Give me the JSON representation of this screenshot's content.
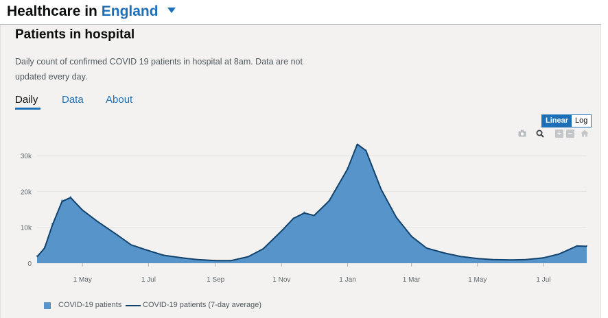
{
  "header": {
    "prefix": "Healthcare in",
    "area": "England"
  },
  "card": {
    "title": "Patients in hospital",
    "description": "Daily count of confirmed COVID 19 patients in hospital at 8am. Data are not updated every day.",
    "tabs": [
      {
        "label": "Daily",
        "active": true
      },
      {
        "label": "Data",
        "active": false
      },
      {
        "label": "About",
        "active": false
      }
    ]
  },
  "scale_toggle": {
    "options": [
      "Linear",
      "Log"
    ],
    "selected": "Linear"
  },
  "modebar": {
    "icons": [
      "camera-icon",
      "zoom-icon",
      "zoom-in-icon",
      "zoom-out-icon",
      "reset-axes-icon"
    ]
  },
  "colors": {
    "accent": "#1d70b8",
    "area_fill": "#5694ca",
    "line": "#12436d",
    "card_bg": "#f3f2f1"
  },
  "chart_data": {
    "type": "area",
    "title": "",
    "xlabel": "",
    "ylabel": "",
    "x_tick_labels": [
      "1 May",
      "1 Jul",
      "1 Sep",
      "1 Nov",
      "1 Jan",
      "1 Mar",
      "1 May",
      "1 Jul"
    ],
    "y_tick_labels": [
      "0",
      "10k",
      "20k",
      "30k"
    ],
    "ylim": [
      0,
      35000
    ],
    "x": [
      "2020-03-20",
      "2020-03-27",
      "2020-04-03",
      "2020-04-12",
      "2020-04-20",
      "2020-05-01",
      "2020-05-15",
      "2020-06-01",
      "2020-06-15",
      "2020-07-01",
      "2020-07-15",
      "2020-08-01",
      "2020-08-15",
      "2020-09-01",
      "2020-09-15",
      "2020-10-01",
      "2020-10-15",
      "2020-11-01",
      "2020-11-12",
      "2020-11-22",
      "2020-12-01",
      "2020-12-15",
      "2021-01-01",
      "2021-01-10",
      "2021-01-18",
      "2021-02-01",
      "2021-02-15",
      "2021-03-01",
      "2021-03-15",
      "2021-04-01",
      "2021-04-15",
      "2021-05-01",
      "2021-05-15",
      "2021-06-01",
      "2021-06-15",
      "2021-07-01",
      "2021-07-15",
      "2021-08-01",
      "2021-08-10"
    ],
    "series": [
      {
        "name": "COVID-19 patients",
        "kind": "bar-area",
        "values": [
          2000,
          4500,
          11000,
          17500,
          18500,
          14800,
          11500,
          8000,
          5000,
          3500,
          2200,
          1500,
          1000,
          700,
          700,
          1800,
          4000,
          9000,
          12500,
          14200,
          13200,
          17500,
          26500,
          33000,
          31500,
          20500,
          12800,
          7500,
          4200,
          2800,
          1900,
          1300,
          1000,
          900,
          1000,
          1500,
          2500,
          4800,
          4800
        ]
      },
      {
        "name": "COVID-19 patients (7-day average)",
        "kind": "line",
        "values": [
          1800,
          4200,
          10500,
          17200,
          18300,
          14800,
          11600,
          8100,
          5100,
          3500,
          2200,
          1500,
          1000,
          700,
          700,
          1800,
          4000,
          9000,
          12500,
          14000,
          13300,
          17400,
          26300,
          33200,
          31400,
          20600,
          12800,
          7500,
          4200,
          2800,
          1900,
          1300,
          1000,
          900,
          1000,
          1500,
          2500,
          4800,
          4700
        ]
      }
    ],
    "legend_position": "bottom-left",
    "grid": true
  }
}
